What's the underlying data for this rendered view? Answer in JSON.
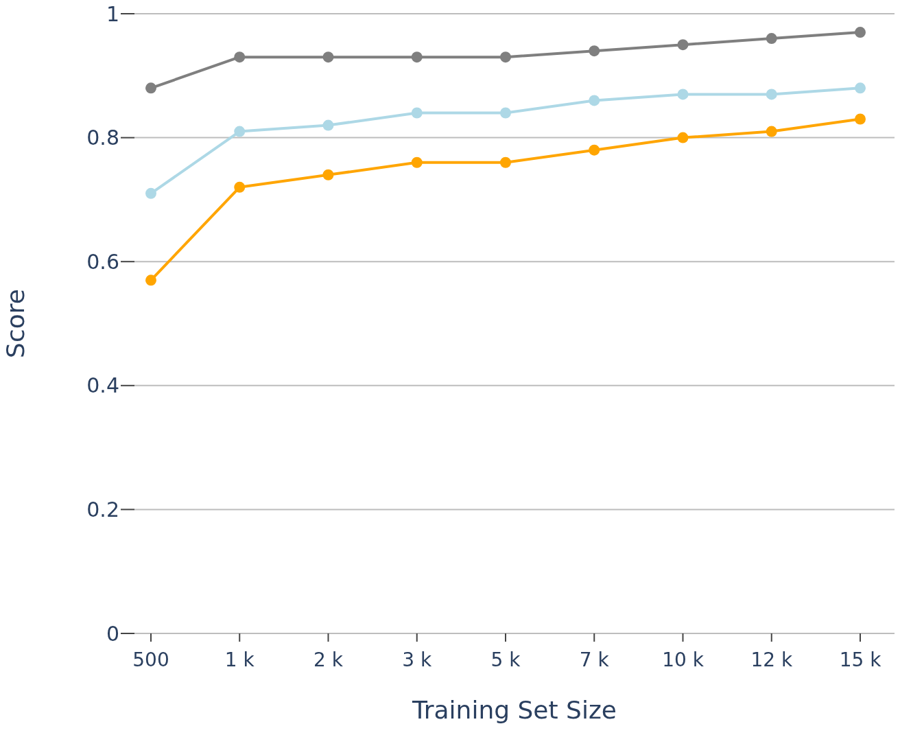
{
  "chart_data": {
    "type": "line",
    "xlabel": "Training Set Size",
    "ylabel": "Score",
    "categories": [
      "500",
      "1 k",
      "2 k",
      "3 k",
      "5 k",
      "7 k",
      "10 k",
      "12 k",
      "15 k"
    ],
    "series": [
      {
        "color": "#7f7f7f",
        "values": [
          0.88,
          0.93,
          0.93,
          0.93,
          0.93,
          0.94,
          0.95,
          0.96,
          0.97
        ]
      },
      {
        "color": "#add8e6",
        "values": [
          0.71,
          0.81,
          0.82,
          0.84,
          0.84,
          0.86,
          0.87,
          0.87,
          0.88
        ]
      },
      {
        "color": "#ffa500",
        "values": [
          0.57,
          0.72,
          0.74,
          0.76,
          0.76,
          0.78,
          0.8,
          0.81,
          0.83
        ]
      }
    ],
    "ylim": [
      0,
      1
    ],
    "yticks": [
      0,
      0.2,
      0.4,
      0.6,
      0.8,
      1
    ],
    "grid": "y",
    "legend": false,
    "marker": "circle",
    "line_style": "solid"
  }
}
